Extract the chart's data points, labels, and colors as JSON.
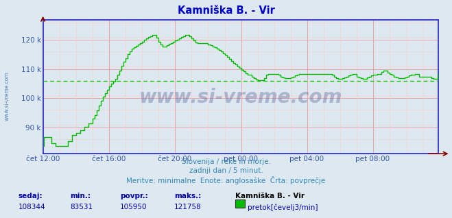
{
  "title": "Kamniška B. - Vir",
  "bg_color": "#dde8f0",
  "plot_bg_color": "#dde8f0",
  "line_color": "#00bb00",
  "avg_line_color": "#00cc00",
  "avg_value": 105950,
  "ymin": 81000,
  "ymax": 127000,
  "yticks": [
    90000,
    100000,
    110000,
    120000
  ],
  "ytick_labels": [
    "90 k",
    "100 k",
    "110 k",
    "120 k"
  ],
  "tick_color": "#3355aa",
  "axis_color": "#2222cc",
  "grid_color_major": "#ee9999",
  "grid_color_minor": "#ffcccc",
  "watermark": "www.si-vreme.com",
  "watermark_color": "#334488",
  "watermark_alpha": 0.3,
  "sidebar_text": "www.si-vreme.com",
  "subtitle1": "Slovenija / reke in morje.",
  "subtitle2": "zadnji dan / 5 minut.",
  "subtitle3": "Meritve: minimalne  Enote: anglosaške  Črta: povprečje",
  "footer_labels": [
    "sedaj:",
    "min.:",
    "povpr.:",
    "maks.:"
  ],
  "footer_values": [
    "108344",
    "83531",
    "105950",
    "121758"
  ],
  "footer_series": "Kamniška B. - Vir",
  "footer_legend": "pretok[čevelj3/min]",
  "x_labels": [
    "čet 12:00",
    "čet 16:00",
    "čet 20:00",
    "pet 00:00",
    "pet 04:00",
    "pet 08:00"
  ],
  "segment_values": [
    83531,
    86800,
    86800,
    86800,
    86800,
    86800,
    86800,
    86800,
    84600,
    84600,
    84600,
    84600,
    83531,
    83531,
    83531,
    83531,
    83531,
    83531,
    83531,
    83531,
    83531,
    83531,
    83531,
    83531,
    85200,
    85200,
    85200,
    85200,
    87400,
    87400,
    87400,
    87400,
    88200,
    88200,
    88200,
    88200,
    89100,
    89100,
    89100,
    89100,
    90200,
    90200,
    90200,
    90200,
    91500,
    91500,
    91500,
    91500,
    93000,
    93000,
    94200,
    94200,
    95800,
    95800,
    97500,
    97500,
    99200,
    99200,
    100500,
    100500,
    101800,
    101800,
    103000,
    103000,
    104200,
    104200,
    105100,
    105100,
    105800,
    105800,
    106800,
    106800,
    108100,
    108100,
    109500,
    109500,
    111200,
    111200,
    112500,
    112500,
    113800,
    113800,
    115100,
    115100,
    116200,
    116200,
    117000,
    117000,
    117500,
    117500,
    118000,
    118000,
    118500,
    118500,
    119000,
    119000,
    119500,
    119500,
    120000,
    120000,
    120500,
    120500,
    121000,
    121000,
    121200,
    121200,
    121758,
    121758,
    121758,
    121758,
    120800,
    120800,
    119500,
    119500,
    118500,
    118500,
    117800,
    117800,
    117800,
    117800,
    118200,
    118200,
    118600,
    118600,
    119000,
    119000,
    119400,
    119400,
    119800,
    119800,
    120200,
    120200,
    120600,
    120600,
    121000,
    121000,
    121200,
    121200,
    121758,
    121758,
    121758,
    121758,
    121200,
    121200,
    120500,
    120500,
    119800,
    119800,
    119200,
    119200,
    118800,
    118800,
    118800,
    118800,
    118800,
    118800,
    118800,
    118800,
    118800,
    118800,
    118500,
    118500,
    118200,
    118200,
    117800,
    117800,
    117400,
    117400,
    117000,
    117000,
    116500,
    116500,
    116000,
    116000,
    115400,
    115400,
    114800,
    114800,
    114200,
    114200,
    113500,
    113500,
    112800,
    112800,
    112200,
    112200,
    111600,
    111600,
    111000,
    111000,
    110400,
    110400,
    109800,
    109800,
    109200,
    109200,
    108600,
    108600,
    108200,
    108200,
    108000,
    108000,
    107500,
    107500,
    107000,
    107000,
    106500,
    106500,
    106200,
    106200,
    106200,
    106200,
    106200,
    106200,
    107000,
    107000,
    108000,
    108000,
    108344,
    108344,
    108344,
    108344,
    108344,
    108344,
    108344,
    108344,
    108344,
    108344,
    108000,
    108000,
    107500,
    107500,
    107200,
    107200,
    107000,
    107000,
    107000,
    107000,
    107000,
    107000,
    107200,
    107200,
    107500,
    107500,
    107800,
    107800,
    108100,
    108100,
    108344,
    108344,
    108344,
    108344,
    108344,
    108344,
    108344,
    108344,
    108344,
    108344,
    108344,
    108344,
    108344,
    108344,
    108344,
    108344,
    108344,
    108344,
    108344,
    108344,
    108344,
    108344,
    108344,
    108344,
    108344,
    108344,
    108344,
    108344,
    108344,
    108344,
    108344,
    108344,
    108000,
    108000,
    107500,
    107500,
    107000,
    107000,
    106800,
    106800,
    106800,
    106800,
    107000,
    107000,
    107200,
    107200,
    107500,
    107500,
    107800,
    107800,
    108100,
    108100,
    108344,
    108344,
    108344,
    108344,
    107500,
    107500,
    107200,
    107200,
    107000,
    107000,
    106800,
    106800,
    106800,
    106800,
    107200,
    107200,
    107500,
    107500,
    107800,
    107800,
    108000,
    108000,
    108200,
    108200,
    108344,
    108344,
    108344,
    108344,
    109000,
    109000,
    109500,
    109500,
    109500,
    109500,
    108800,
    108800,
    108344,
    108344,
    108000,
    108000,
    107500,
    107500,
    107200,
    107200,
    107000,
    107000,
    107000,
    107000,
    107000,
    107000,
    107200,
    107200,
    107500,
    107500,
    107800,
    107800,
    108000,
    108000,
    108200,
    108200,
    108344,
    108344,
    108344,
    108344,
    107500,
    107500,
    107500,
    107500,
    107500,
    107500,
    107500,
    107500,
    107500,
    107500,
    107500,
    107500,
    107000,
    107000,
    106800,
    106800,
    106800,
    106800,
    108344,
    108344
  ]
}
